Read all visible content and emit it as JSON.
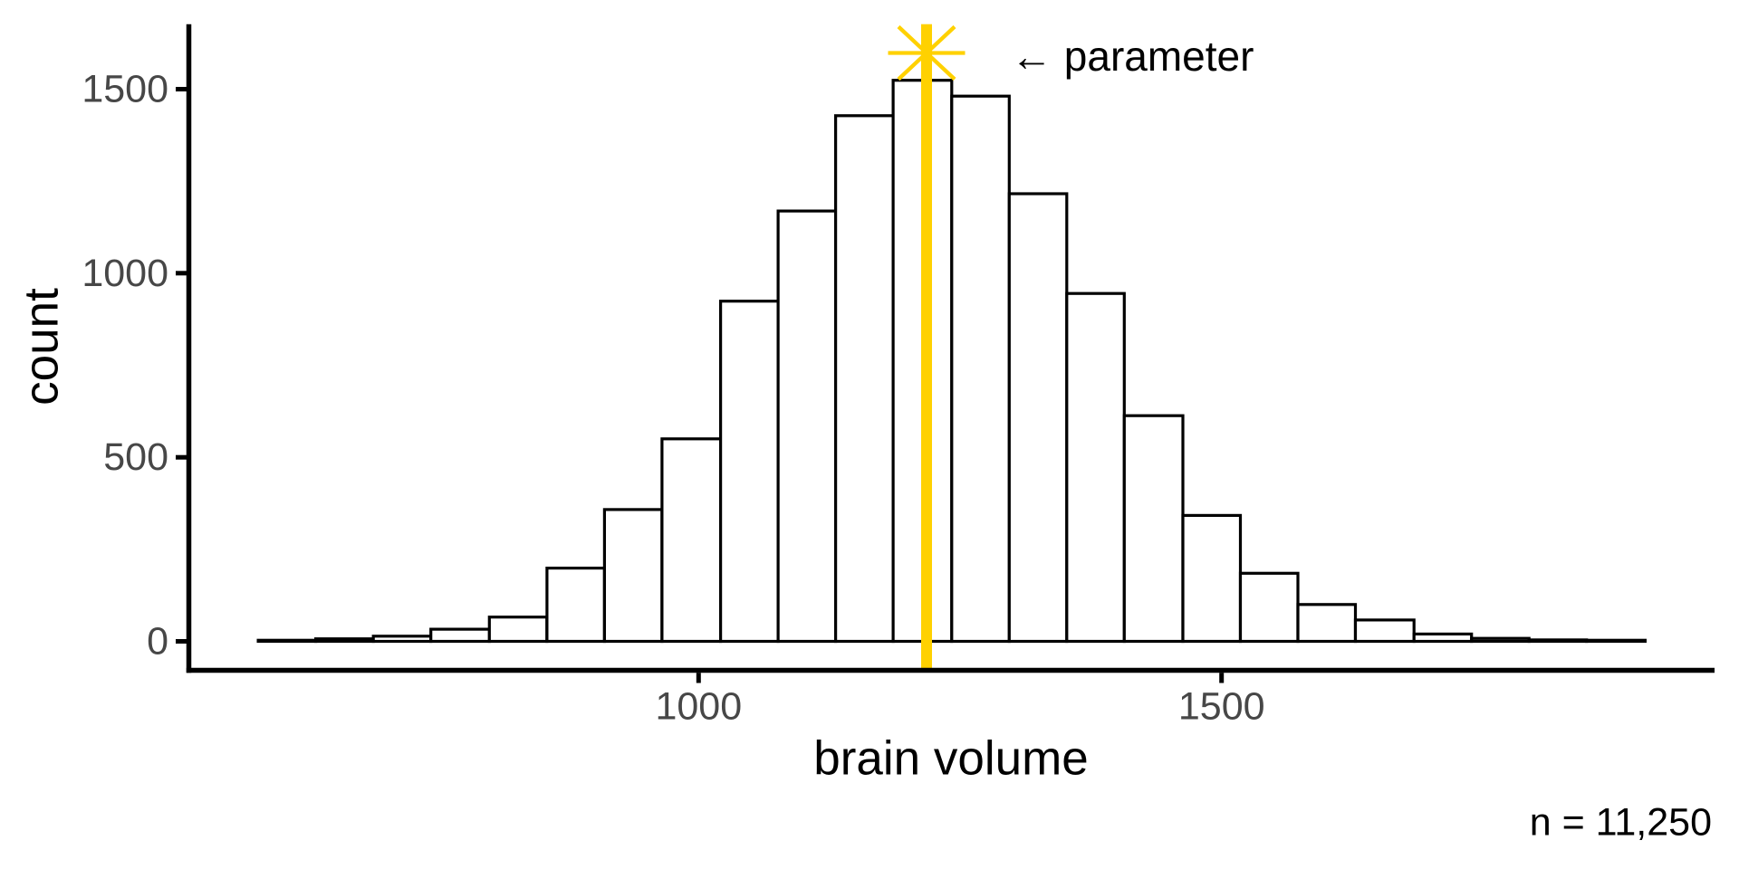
{
  "figure": {
    "background_color": "#FFFFFF",
    "annotation_parameter": "← parameter",
    "sample_size_label": "n = 11,250",
    "colors": {
      "parameter_line": "#FFD100",
      "bar_fill": "#FFFFFF",
      "bar_stroke": "#000000",
      "axis_line": "#000000",
      "tick_label": "#474747",
      "axis_title": "#000000",
      "annotation_text": "#000000"
    }
  },
  "chart_data": {
    "type": "bar",
    "subtype": "histogram",
    "title": "",
    "xlabel": "brain volume",
    "ylabel": "count",
    "x_tick_labels": [
      "1000",
      "1500"
    ],
    "x_tick_values": [
      1000,
      1500
    ],
    "y_tick_labels": [
      "0",
      "500",
      "1000",
      "1500"
    ],
    "y_tick_values": [
      0,
      500,
      1000,
      1500
    ],
    "xlim": [
      513,
      1971
    ],
    "ylim": [
      0,
      1677
    ],
    "grid": false,
    "legend": null,
    "bin_edges": [
      579,
      634,
      689,
      744,
      800,
      855,
      910,
      965,
      1021,
      1076,
      1131,
      1186,
      1242,
      1297,
      1352,
      1407,
      1463,
      1518,
      1573,
      1628,
      1684,
      1739,
      1794,
      1849,
      1905
    ],
    "counts": [
      3,
      7,
      14,
      33,
      66,
      199,
      358,
      550,
      924,
      1169,
      1428,
      1524,
      1481,
      1216,
      945,
      613,
      342,
      185,
      100,
      58,
      20,
      8,
      4,
      3
    ],
    "parameter_value": 1218,
    "n_total": 11250
  }
}
